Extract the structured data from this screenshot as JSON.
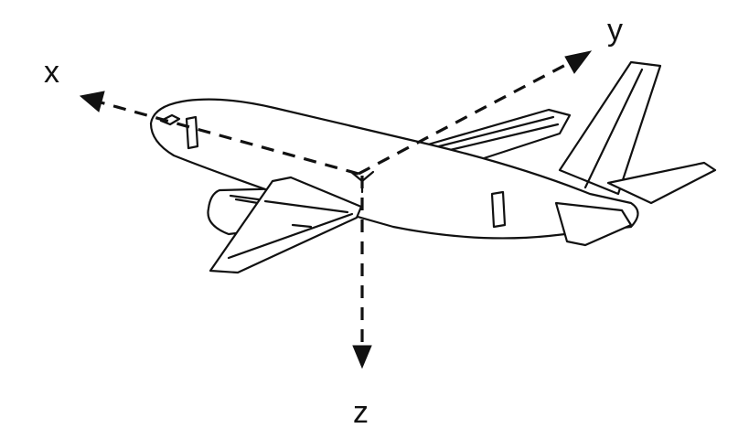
{
  "axes": {
    "x_label": "x",
    "y_label": "y",
    "z_label": "z"
  },
  "colors": {
    "ink": "#111111",
    "background": "#ffffff"
  },
  "icons": {
    "figure": "airplane-icon"
  }
}
